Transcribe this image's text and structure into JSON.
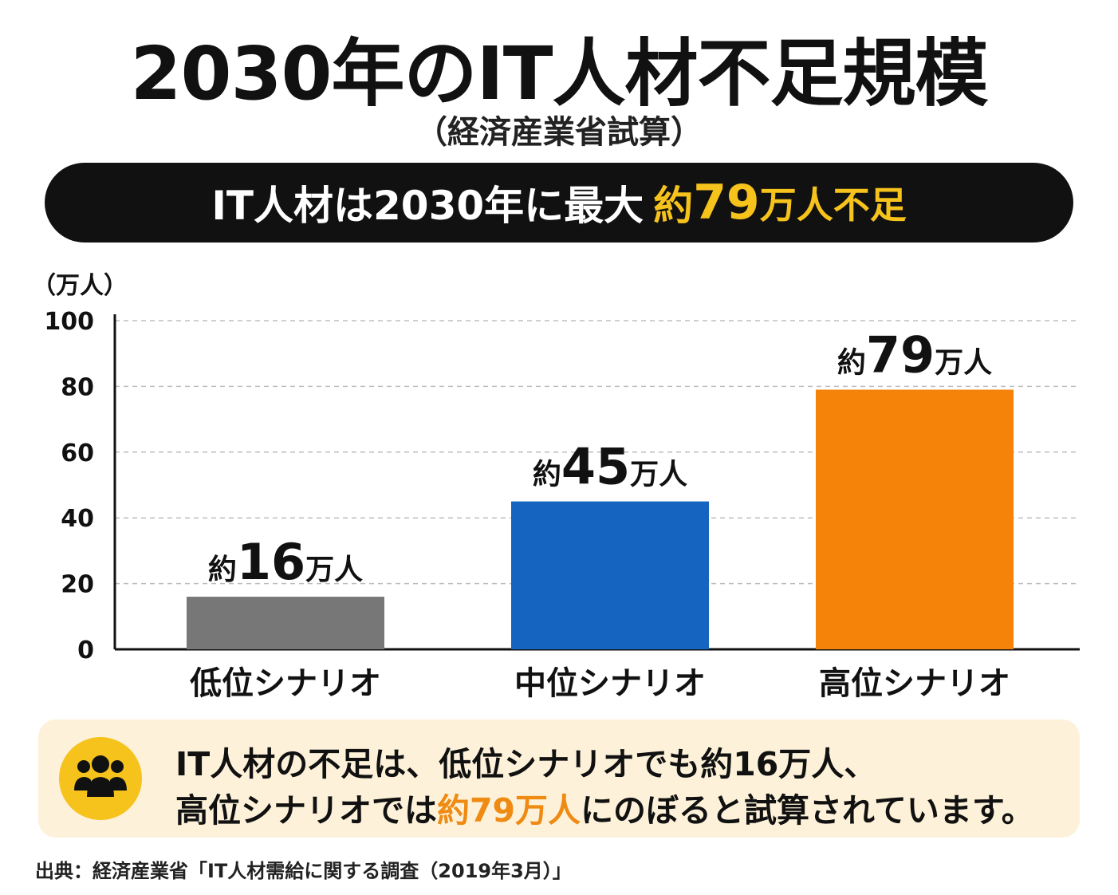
{
  "title": "2030年のIT人材不足規模",
  "subtitle": "（経済産業省試算）",
  "banner": {
    "prefix": "IT人材は2030年に最大",
    "highlight_a": "約",
    "highlight_num": "79",
    "highlight_b": "万人不足"
  },
  "colors": {
    "banner_bg": "#111111",
    "highlight": "#f6c21c",
    "note_bg": "#fdf2d9",
    "note_accent": "#ef8a12"
  },
  "chart_data": {
    "type": "bar",
    "unit_label": "（万人）",
    "categories": [
      "低位シナリオ",
      "中位シナリオ",
      "高位シナリオ"
    ],
    "values": [
      16,
      45,
      79
    ],
    "colors": [
      "#777777",
      "#1565c0",
      "#f5830a"
    ],
    "data_labels": [
      {
        "prefix": "約",
        "num": "16",
        "suffix": "万人"
      },
      {
        "prefix": "約",
        "num": "45",
        "suffix": "万人"
      },
      {
        "prefix": "約",
        "num": "79",
        "suffix": "万人"
      }
    ],
    "y_ticks": [
      "0",
      "20",
      "40",
      "60",
      "80",
      "100"
    ],
    "ylim": [
      0,
      100
    ],
    "grid": "dashed horizontal"
  },
  "note": {
    "icon": "people-group-icon",
    "line1": "IT人材の不足は、低位シナリオでも約16万人、",
    "line2_pre": "高位シナリオでは",
    "line2_accent": "約79万人",
    "line2_post": "にのぼると試算されています。"
  },
  "source": "出典：経済産業省「IT人材需給に関する調査（2019年3月）」"
}
